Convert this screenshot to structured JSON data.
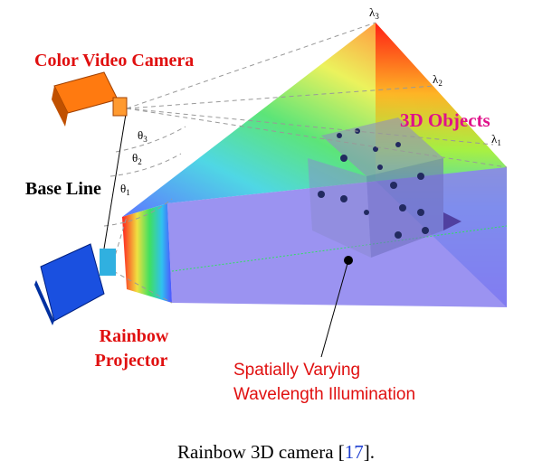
{
  "labels": {
    "camera": "Color Video Camera",
    "baseline": "Base Line",
    "projector": [
      "Rainbow",
      "Projector"
    ],
    "objects": "3D Objects",
    "illumination": [
      "Spatially Varying",
      "Wavelength Illumination"
    ],
    "lambdas": [
      {
        "symbol": "λ",
        "sub": "3"
      },
      {
        "symbol": "λ",
        "sub": "2"
      },
      {
        "symbol": "λ",
        "sub": "1"
      }
    ],
    "thetas": [
      {
        "symbol": "θ",
        "sub": "3"
      },
      {
        "symbol": "θ",
        "sub": "2"
      },
      {
        "symbol": "θ",
        "sub": "1"
      }
    ]
  },
  "caption": {
    "text": "Rainbow 3D camera [",
    "ref": "17",
    "end": "]."
  }
}
